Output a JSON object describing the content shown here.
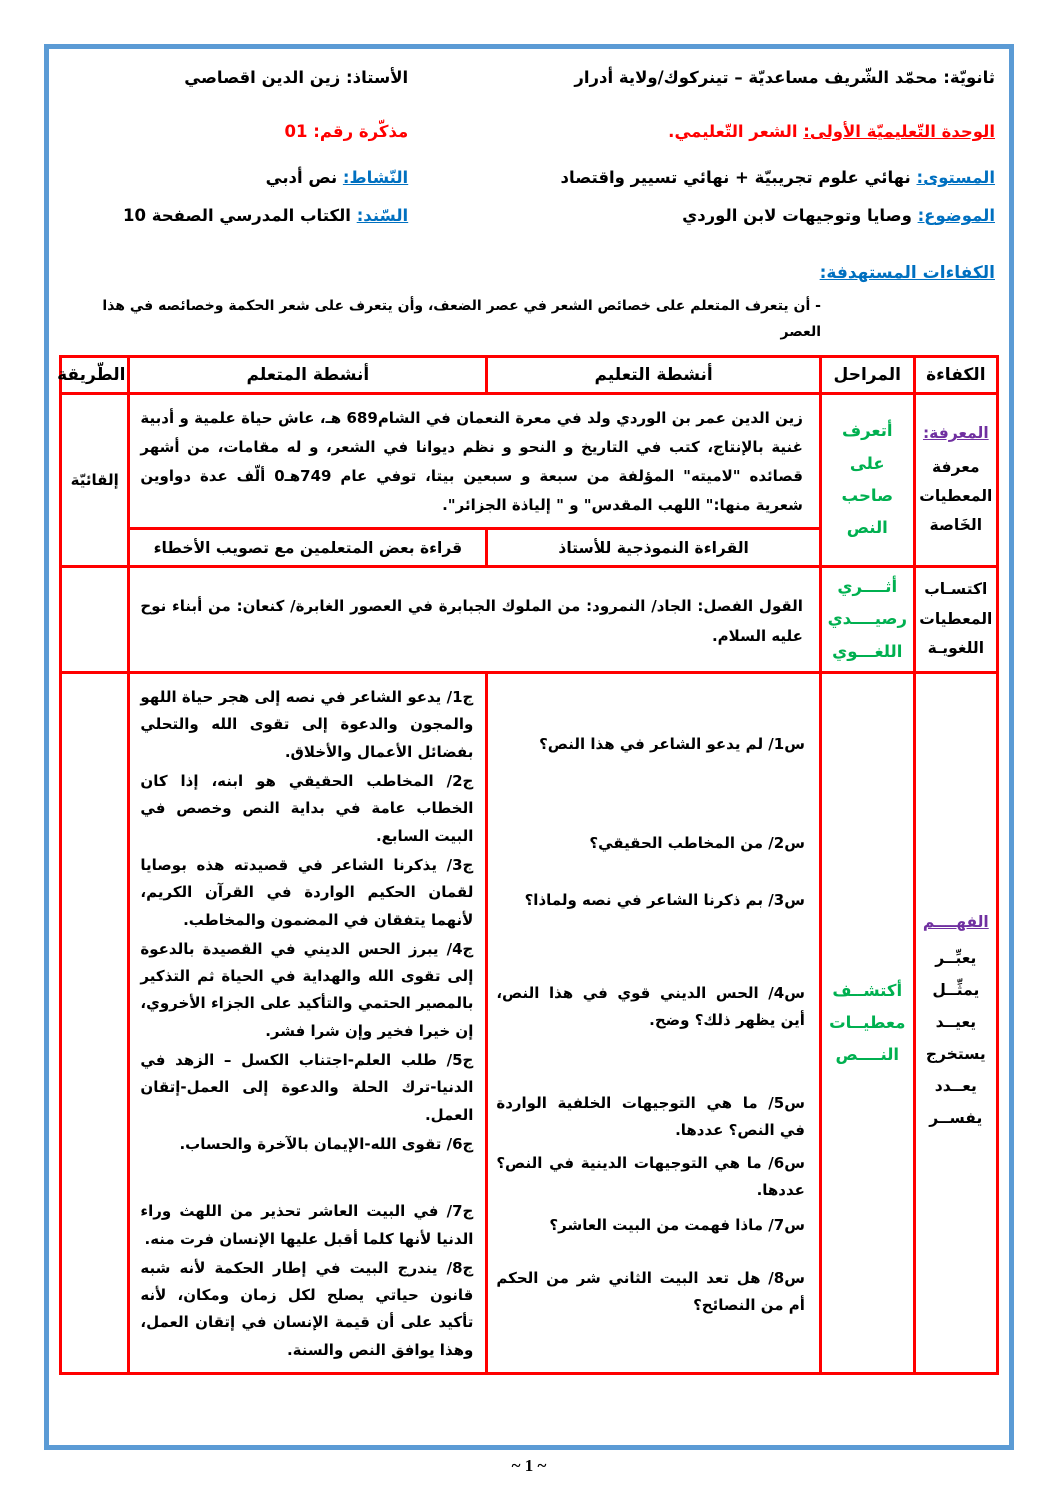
{
  "header": {
    "school": "ثانويّة: محمّد الشّريف مساعديّة – تينركوك/ولاية أدرار",
    "teacher": "الأستاذ: زين الدين اقصاصي",
    "unit_label": "الوحدة التّعليميّة الأولى:",
    "unit_value": " الشعر التّعليمي.",
    "memo": "مذكّرة رقم: 01",
    "level_label": "المستوى:",
    "level_value": " نهائي علوم تجريبيّة + نهائي تسيير واقتصاد",
    "activity_label": "النّشاط:",
    "activity_value": " نص أدبي",
    "subject_label": "الموضوع:",
    "subject_value": " وصايا وتوجيهات لابن الوردي",
    "support_label": "السّند:",
    "support_value": " الكتاب المدرسي الصفحة 10"
  },
  "competencies": {
    "heading": "الكفاءات المستهدفة:",
    "objective": "-    أن يتعرف المتعلم على خصائص الشعر في عصر الضعف، وأن يتعرف على شعر الحكمة وخصائصه في هذا العصر"
  },
  "table": {
    "headers": {
      "competency": "الكفاءة",
      "stages": "المراحل",
      "teaching": "أنشطة التعليم",
      "learner": "أنشطة المتعلم",
      "method": "الطّريقة"
    },
    "row1": {
      "competency_title": "المعرفة:",
      "competency_body": "معرفة المعطيات الخَاصة",
      "stage_lines": [
        "أتعرف",
        "على",
        "صاحب",
        "النص"
      ],
      "bio": "زين الدين عمر بن الوردي ولد في معرة النعمان في الشام689 هـ، عاش حياة علمية و أدبية غنية بالإنتاج، كتب في التاريخ و النحو و نظم ديوانا في الشعر، و له مقامات، من أشهر قصائده \"لاميته\" المؤلفة من سبعة و سبعين بيتا، توفي عام 749هـ0 ألّف عدة دواوين شعرية منها:\" اللهب المقدس\" و \" إلياذة الجزائر\".",
      "teaching_reading": "القراءة النموذجية للأستاذ",
      "learner_reading": "قراءة بعض المتعلمين مع تصويب الأخطاء",
      "method": "إلقائيّة"
    },
    "row2": {
      "competency": "اكتسـاب المعطيات اللغويـة",
      "stage_lines": [
        "أثــــري",
        "رصيــــدي",
        "اللغـــوي"
      ],
      "content": "القول الفصل: الجاد/ النمرود: من الملوك الجبابرة في العصور الغابرة/ كنعان: من أبناء نوح عليه السلام."
    },
    "row3": {
      "competency_title": "الفهــــم",
      "competency_verbs": [
        "يعبِّــر",
        "يمثِّــل",
        "يعيــد",
        "يستخرج",
        "يعــدد",
        "يفســر"
      ],
      "stage_lines": [
        "أكتشــف",
        "معطيــات",
        "النــــص"
      ],
      "questions": [
        "س1/ لم يدعو الشاعر في هذا النص؟",
        "س2/ من المخاطب الحقيقي؟",
        "س3/ بم ذكرنا الشاعر في نصه ولماذا؟",
        "س4/ الحس الديني قوي في هذا النص، أين يظهر ذلك؟ وضح.",
        "س5/ ما هي التوجيهات الخلفية الواردة في النص؟ عددها.",
        "س6/ ما هي التوجيهات الدينية في النص؟ عددها.",
        "س7/ ماذا فهمت من البيت العاشر؟",
        "س8/ هل تعد البيت الثاني شر من الحكم أم من النصائح؟"
      ],
      "answers": [
        "ج1/ يدعو الشاعر في نصه إلى هجر حياة اللهو والمجون والدعوة إلى تقوى الله والتحلي بفضائل الأعمال والأخلاق.",
        "ج2/ المخاطب الحقيقي هو ابنه، إذا كان الخطاب عامة في بداية النص وخصص في البيت السابع.",
        "ج3/ يذكرنا الشاعر في قصيدته هذه بوصايا لقمان الحكيم الواردة في القرآن الكريم، لأنهما يتفقان في المضمون والمخاطب.",
        "ج4/ يبرز الحس الديني في القصيدة بالدعوة إلى تقوى الله والهداية في الحياة ثم التذكير بالمصير الحتمي والتأكيد على الجزاء الأخروي، إن خيرا فخير وإن شرا فشر.",
        "ج5/ طلب العلم-اجتناب الكسل – الزهد في الدنيا-ترك الحلة والدعوة إلى العمل-إتقان العمل.",
        "ج6/ تقوى الله-الإيمان بالآخرة والحساب.",
        "ج7/ في البيت العاشر تحذير من اللهث وراء الدنيا لأنها كلما أقبل عليها الإنسان فرت منه.",
        "ج8/ يندرج البيت في إطار الحكمة لأنه شبه قانون حياتي يصلح لكل زمان ومكان، لأنه تأكيد على أن قيمة الإنسان في إتقان العمل، وهذا يوافق النص والسنة."
      ]
    }
  },
  "footer": {
    "page_number": "~ 1 ~"
  }
}
